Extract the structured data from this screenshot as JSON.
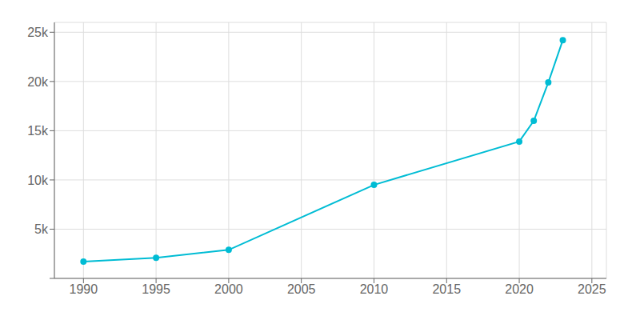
{
  "chart_data": {
    "type": "line",
    "x": [
      1990,
      1995,
      2000,
      2010,
      2020,
      2021,
      2022,
      2023
    ],
    "values": [
      1700,
      2100,
      2900,
      9500,
      13900,
      16000,
      19900,
      24200
    ],
    "color": "#00BCD4",
    "marker": "o",
    "xlim": [
      1988,
      2026
    ],
    "ylim": [
      0,
      26000
    ],
    "xticks": [
      1990,
      1995,
      2000,
      2005,
      2010,
      2015,
      2020,
      2025
    ],
    "yticks": [
      {
        "value": 0,
        "label": null
      },
      {
        "value": 5000,
        "label": "5k"
      },
      {
        "value": 10000,
        "label": "10k"
      },
      {
        "value": 15000,
        "label": "15k"
      },
      {
        "value": 20000,
        "label": "20k"
      },
      {
        "value": 25000,
        "label": "25k"
      }
    ],
    "grid": true
  }
}
